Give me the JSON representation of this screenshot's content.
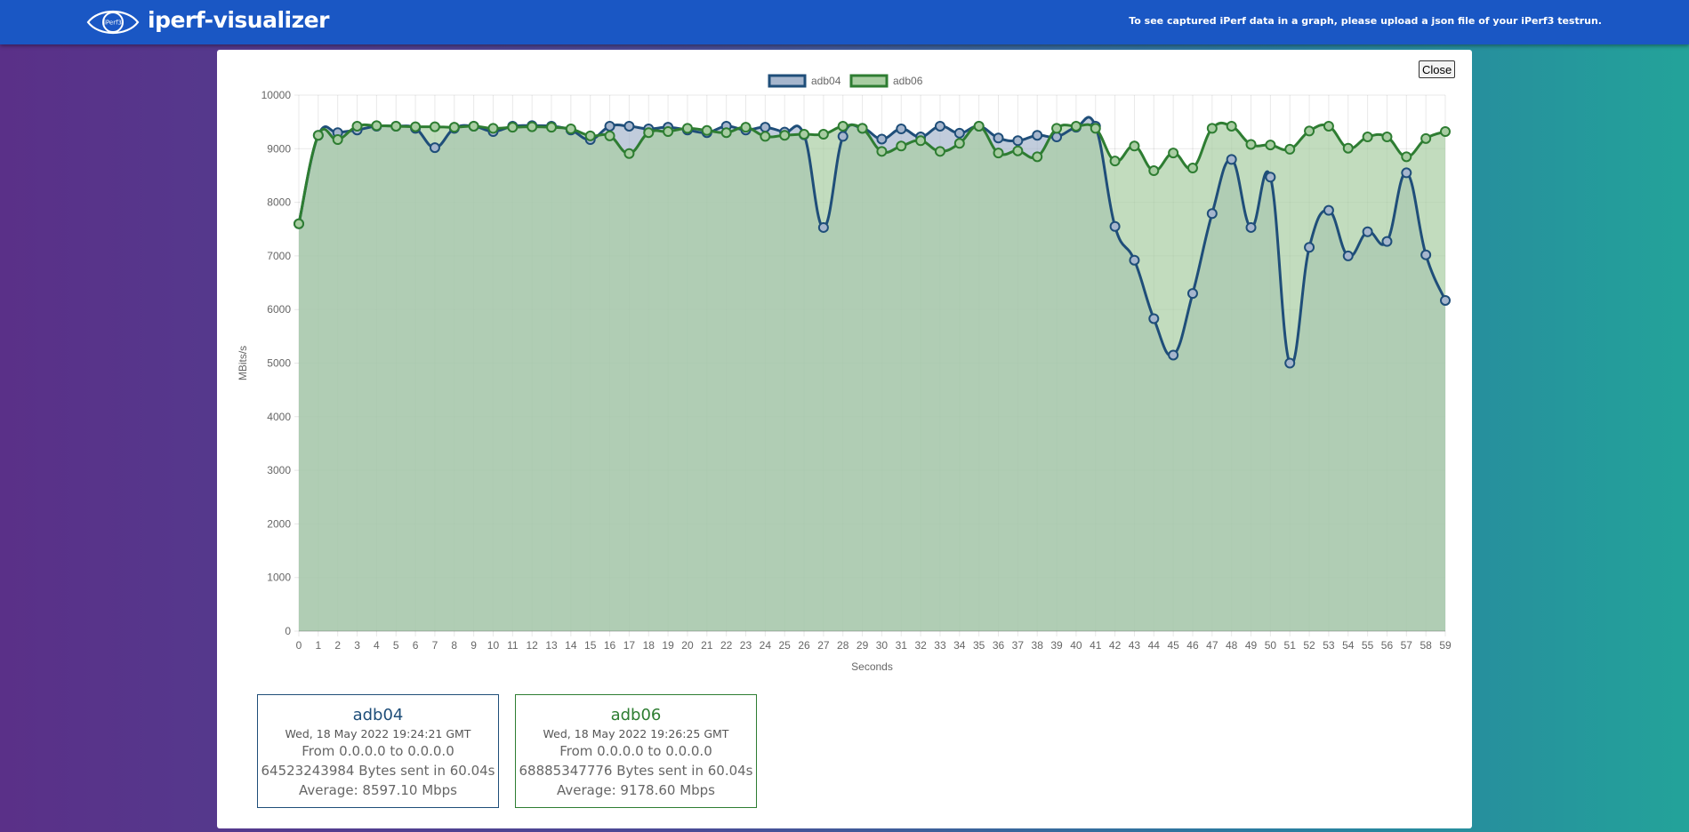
{
  "header": {
    "app_title": "iperf-visualizer",
    "logo_text": "iPerf3",
    "hint": "To see captured iPerf data in a graph, please upload a json file of your iPerf3 testrun."
  },
  "panel": {
    "close_label": "Close"
  },
  "colors": {
    "header_bg": "#1a57c4",
    "adb04_line": "#1f4e79",
    "adb04_fill": "#a6b6cd",
    "adb06_line": "#2e7d32",
    "adb06_fill": "#a8cda2"
  },
  "chart_data": {
    "type": "line",
    "xlabel": "Seconds",
    "ylabel": "MBits/s",
    "ylim": [
      0,
      10000
    ],
    "yticks": [
      0,
      1000,
      2000,
      3000,
      4000,
      5000,
      6000,
      7000,
      8000,
      9000,
      10000
    ],
    "x": [
      0,
      1,
      2,
      3,
      4,
      5,
      6,
      7,
      8,
      9,
      10,
      11,
      12,
      13,
      14,
      15,
      16,
      17,
      18,
      19,
      20,
      21,
      22,
      23,
      24,
      25,
      26,
      27,
      28,
      29,
      30,
      31,
      32,
      33,
      34,
      35,
      36,
      37,
      38,
      39,
      40,
      41,
      42,
      43,
      44,
      45,
      46,
      47,
      48,
      49,
      50,
      51,
      52,
      53,
      54,
      55,
      56,
      57,
      58,
      59
    ],
    "grid": true,
    "legend_position": "top-center",
    "filled": true,
    "series": [
      {
        "name": "adb04",
        "values": [
          7600,
          9250,
          9300,
          9350,
          9420,
          9420,
          9380,
          9020,
          9380,
          9420,
          9320,
          9420,
          9430,
          9420,
          9350,
          9170,
          9420,
          9420,
          9370,
          9400,
          9350,
          9300,
          9420,
          9350,
          9400,
          9310,
          9260,
          7530,
          9230,
          9380,
          9180,
          9370,
          9220,
          9420,
          9290,
          9420,
          9200,
          9150,
          9250,
          9220,
          9400,
          9420,
          7550,
          6920,
          5830,
          5150,
          6300,
          7790,
          8800,
          7530,
          8470,
          5000,
          7160,
          7850,
          7000,
          7450,
          7270,
          8550,
          7020,
          6170
        ]
      },
      {
        "name": "adb06",
        "values": [
          7600,
          9250,
          9170,
          9420,
          9430,
          9420,
          9410,
          9410,
          9400,
          9420,
          9380,
          9400,
          9410,
          9400,
          9370,
          9240,
          9240,
          8910,
          9300,
          9320,
          9380,
          9340,
          9300,
          9400,
          9230,
          9250,
          9270,
          9270,
          9420,
          9380,
          8950,
          9050,
          9150,
          8950,
          9100,
          9420,
          8920,
          8960,
          8850,
          9380,
          9420,
          9380,
          8770,
          9050,
          8590,
          8920,
          8640,
          9380,
          9420,
          9080,
          9070,
          8990,
          9330,
          9420,
          9010,
          9220,
          9220,
          8850,
          9190,
          9320
        ]
      }
    ]
  },
  "cards": [
    {
      "name": "adb04",
      "date": "Wed, 18 May 2022 19:24:21 GMT",
      "from": "From 0.0.0.0 to 0.0.0.0",
      "bytes": "64523243984 Bytes sent in 60.04s",
      "average": "Average: 8597.10 Mbps"
    },
    {
      "name": "adb06",
      "date": "Wed, 18 May 2022 19:26:25 GMT",
      "from": "From 0.0.0.0 to 0.0.0.0",
      "bytes": "68885347776 Bytes sent in 60.04s",
      "average": "Average: 9178.60 Mbps"
    }
  ]
}
